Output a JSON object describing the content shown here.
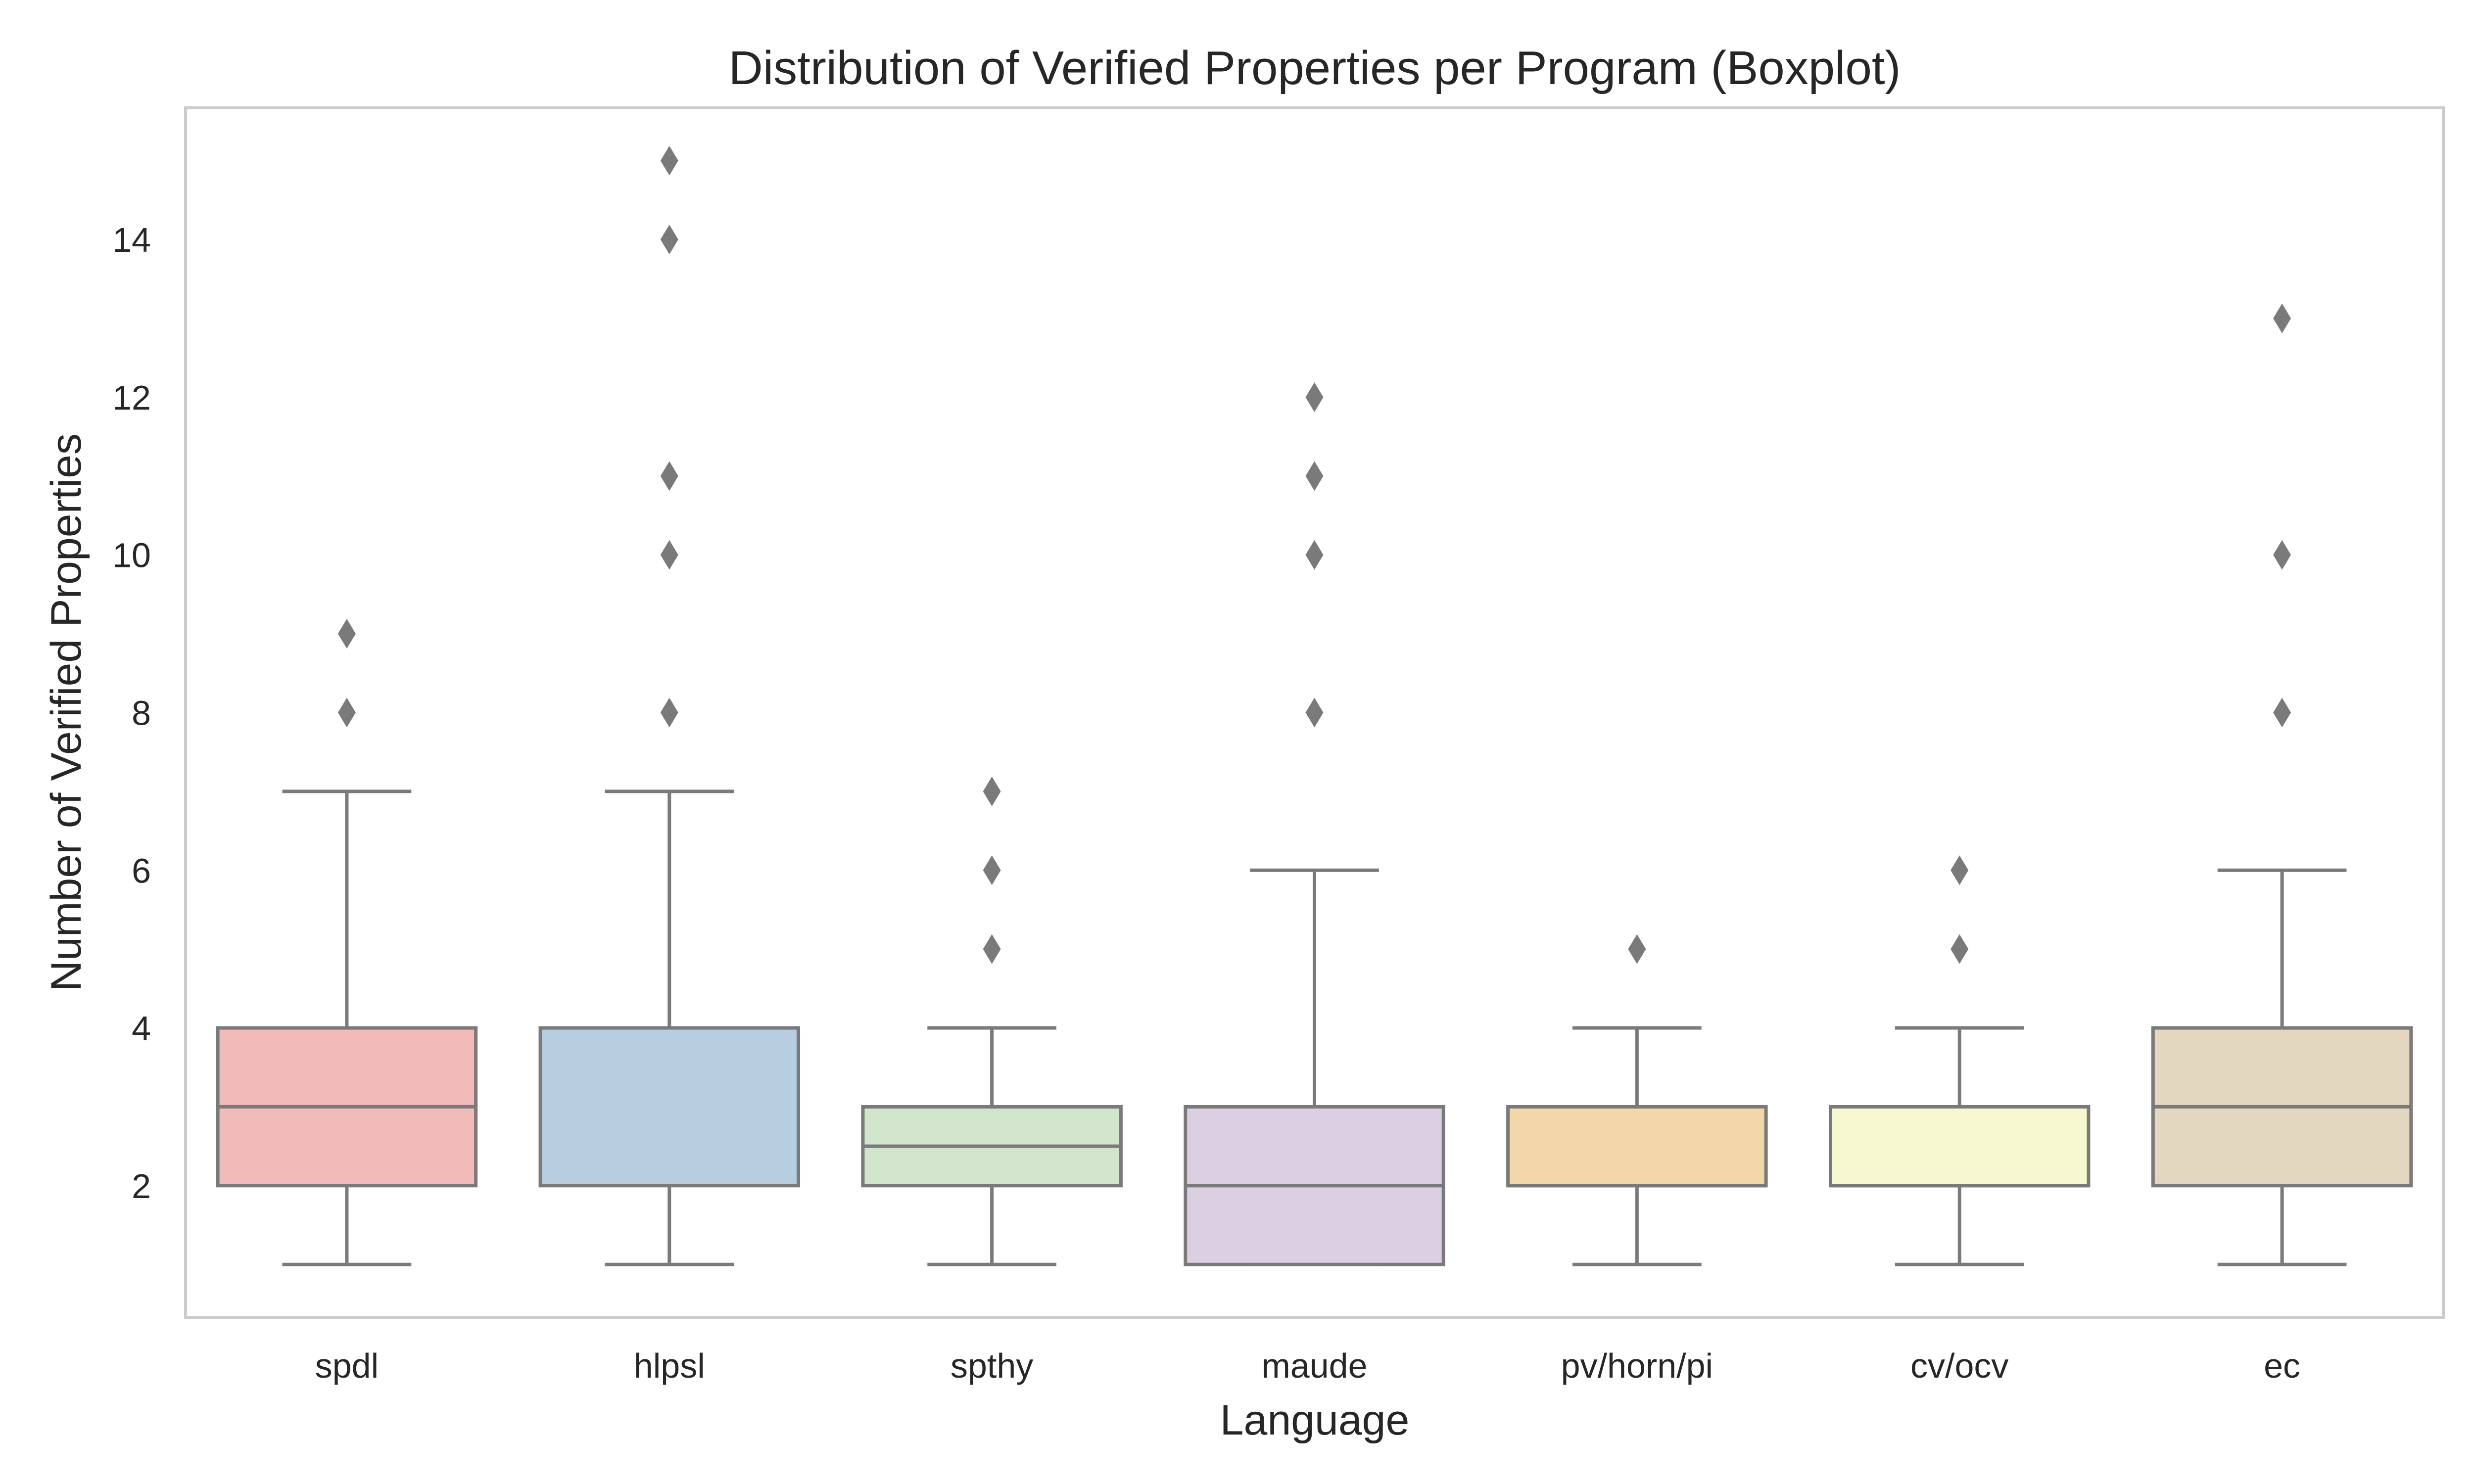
{
  "chart_data": {
    "type": "boxplot",
    "title": "Distribution of Verified Properties per Program (Boxplot)",
    "xlabel": "Language",
    "ylabel": "Number of Verified Properties",
    "ylim": [
      0.33,
      15.67
    ],
    "y_ticks": [
      2,
      4,
      6,
      8,
      10,
      12,
      14
    ],
    "grid": false,
    "categories": [
      "spdl",
      "hlpsl",
      "spthy",
      "maude",
      "pv/horn/pi",
      "cv/ocv",
      "ec"
    ],
    "boxes": [
      {
        "category": "spdl",
        "whisker_low": 1,
        "q1": 2,
        "median": 3,
        "q3": 4,
        "whisker_high": 7,
        "outliers": [
          8,
          9
        ],
        "color": "#f1bbba"
      },
      {
        "category": "hlpsl",
        "whisker_low": 1,
        "q1": 2,
        "median": 4,
        "q3": 4,
        "whisker_high": 7,
        "outliers": [
          8,
          10,
          11,
          14,
          15
        ],
        "color": "#b7cde0"
      },
      {
        "category": "spthy",
        "whisker_low": 1,
        "q1": 2,
        "median": 2.5,
        "q3": 3,
        "whisker_high": 4,
        "outliers": [
          5,
          6,
          7
        ],
        "color": "#d0e5cc"
      },
      {
        "category": "maude",
        "whisker_low": 1,
        "q1": 1,
        "median": 2,
        "q3": 3,
        "whisker_high": 6,
        "outliers": [
          8,
          10,
          11,
          12
        ],
        "color": "#ddcfe2"
      },
      {
        "category": "pv/horn/pi",
        "whisker_low": 1,
        "q1": 2,
        "median": 2,
        "q3": 3,
        "whisker_high": 4,
        "outliers": [
          5
        ],
        "color": "#f3d6a9"
      },
      {
        "category": "cv/ocv",
        "whisker_low": 1,
        "q1": 2,
        "median": 2,
        "q3": 3,
        "whisker_high": 4,
        "outliers": [
          5,
          6
        ],
        "color": "#f8f8d0"
      },
      {
        "category": "ec",
        "whisker_low": 1,
        "q1": 2,
        "median": 3,
        "q3": 4,
        "whisker_high": 6,
        "outliers": [
          8,
          10,
          13
        ],
        "color": "#e3d7c0"
      }
    ],
    "line_color": "#7a7a7a",
    "frame_color": "#cccccc"
  }
}
